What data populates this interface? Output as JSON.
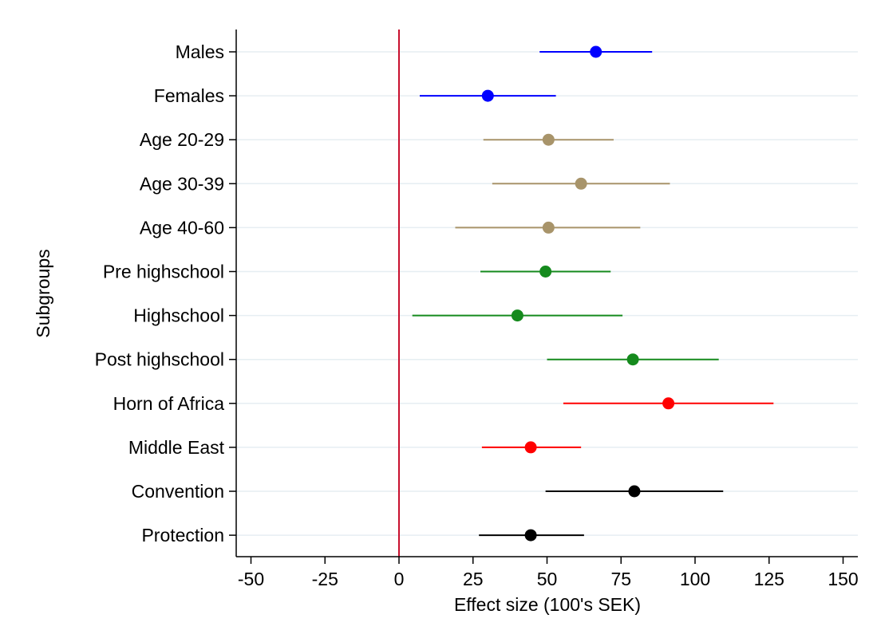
{
  "chart_data": {
    "type": "scatter",
    "subtype": "coefficient-plot-with-confidence-intervals",
    "title": "",
    "xlabel": "Effect size (100's SEK)",
    "ylabel": "Subgroups",
    "xlim": [
      -55,
      155
    ],
    "xticks": [
      -50,
      -25,
      0,
      25,
      50,
      75,
      100,
      125,
      150
    ],
    "xtick_labels": [
      "-50",
      "-25",
      "0",
      "25",
      "50",
      "75",
      "100",
      "125",
      "150"
    ],
    "reference_line": {
      "x": 0,
      "color": "#c8102e"
    },
    "grid": "horizontal-only",
    "grid_color": "#e6eef2",
    "legend": "none",
    "categories": [
      "Males",
      "Females",
      "Age 20-29",
      "Age 30-39",
      "Age 40-60",
      "Pre highschool",
      "Highschool",
      "Post highschool",
      "Horn of Africa",
      "Middle East",
      "Convention",
      "Protection"
    ],
    "points": [
      {
        "label": "Males",
        "estimate": 66.5,
        "ci_low": 47.5,
        "ci_high": 85.5,
        "color": "#0000ff"
      },
      {
        "label": "Females",
        "estimate": 30,
        "ci_low": 7,
        "ci_high": 53,
        "color": "#0000ff"
      },
      {
        "label": "Age 20-29",
        "estimate": 50.5,
        "ci_low": 28.5,
        "ci_high": 72.5,
        "color": "#a8946a"
      },
      {
        "label": "Age 30-39",
        "estimate": 61.5,
        "ci_low": 31.5,
        "ci_high": 91.5,
        "color": "#a8946a"
      },
      {
        "label": "Age 40-60",
        "estimate": 50.5,
        "ci_low": 19,
        "ci_high": 81.5,
        "color": "#a8946a"
      },
      {
        "label": "Pre highschool",
        "estimate": 49.5,
        "ci_low": 27.5,
        "ci_high": 71.5,
        "color": "#158a1d"
      },
      {
        "label": "Highschool",
        "estimate": 40,
        "ci_low": 4.5,
        "ci_high": 75.5,
        "color": "#158a1d"
      },
      {
        "label": "Post highschool",
        "estimate": 79,
        "ci_low": 50,
        "ci_high": 108,
        "color": "#158a1d"
      },
      {
        "label": "Horn of Africa",
        "estimate": 91,
        "ci_low": 55.5,
        "ci_high": 126.5,
        "color": "#ff0000"
      },
      {
        "label": "Middle East",
        "estimate": 44.5,
        "ci_low": 28,
        "ci_high": 61.5,
        "color": "#ff0000"
      },
      {
        "label": "Convention",
        "estimate": 79.5,
        "ci_low": 49.5,
        "ci_high": 109.5,
        "color": "#000000"
      },
      {
        "label": "Protection",
        "estimate": 44.5,
        "ci_low": 27,
        "ci_high": 62.5,
        "color": "#000000"
      }
    ]
  }
}
